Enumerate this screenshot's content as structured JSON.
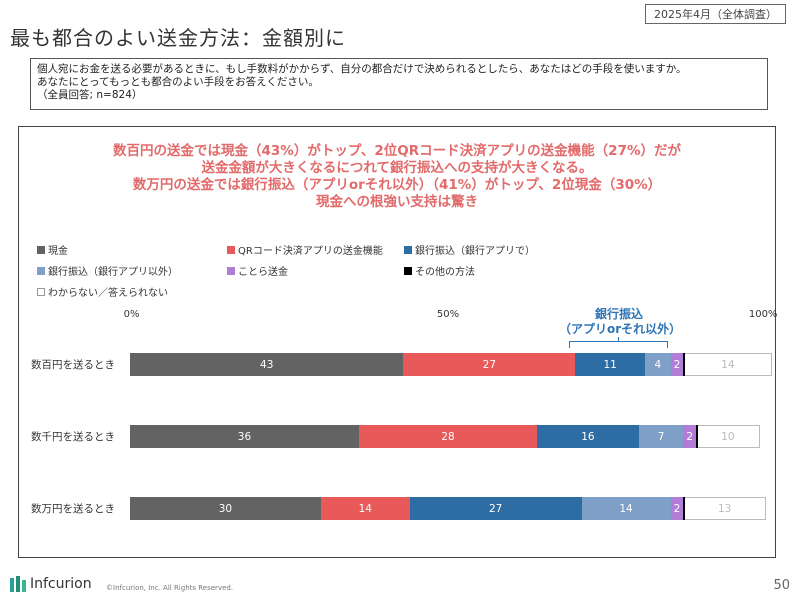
{
  "header": {
    "date_tag": "2025年4月（全体調査）",
    "title": "最も都合のよい送金方法：金額別に"
  },
  "question": {
    "line1": "個人宛にお金を送る必要があるときに、もし手数料がかからず、自分の都合だけで決められるとしたら、あなたはどの手段を使いますか。",
    "line2": "あなたにとってもっとも都合のよい手段をお答えください。",
    "line3": "（全員回答; n=824）"
  },
  "headline": {
    "line1": "数百円の送金では現金（43%）がトップ、2位QRコード決済アプリの送金機能（27%）だが",
    "line2": "送金金額が大きくなるにつれて銀行振込への支持が大きくなる。",
    "line3": "数万円の送金では銀行振込（アプリorそれ以外）（41%）がトップ、2位現金（30%）",
    "line4": "現金への根強い支持は驚き"
  },
  "callout": {
    "line1": "銀行振込",
    "line2": "（アプリorそれ以外）"
  },
  "chart_data": {
    "type": "bar",
    "orientation": "horizontal-stacked-100",
    "xlim": [
      0,
      100
    ],
    "x_ticks": [
      "0%",
      "50%",
      "100%"
    ],
    "categories": [
      "数百円を送るとき",
      "数千円を送るとき",
      "数万円を送るとき"
    ],
    "series": [
      {
        "name": "現金",
        "color": "#636363",
        "values": [
          43,
          36,
          30
        ]
      },
      {
        "name": "QRコード決済アプリの送金機能",
        "color": "#e85a5a",
        "values": [
          27,
          28,
          14
        ]
      },
      {
        "name": "銀行振込（銀行アプリで）",
        "color": "#2e6ca4",
        "values": [
          11,
          16,
          27
        ]
      },
      {
        "name": "銀行振込（銀行アプリ以外）",
        "color": "#7f9fc9",
        "values": [
          4,
          7,
          14
        ]
      },
      {
        "name": "ことら送金",
        "color": "#b07cd6",
        "values": [
          2,
          2,
          2
        ]
      },
      {
        "name": "その他の方法",
        "color": "#000000",
        "values": [
          0,
          0,
          0
        ]
      },
      {
        "name": "わからない／答えられない",
        "color": "#ffffff",
        "values": [
          14,
          10,
          13
        ]
      }
    ]
  },
  "footer": {
    "brand": "Infcurion",
    "copyright": "©Infcurion, Inc.  All Rights Reserved.",
    "page_number": "50"
  }
}
